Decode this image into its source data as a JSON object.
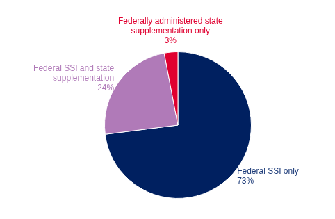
{
  "chart_data": {
    "type": "pie",
    "values": [
      73,
      24,
      3
    ],
    "colors": [
      "#002060",
      "#b07ab8",
      "#e00030"
    ],
    "annotations": [
      {
        "text": "Federal SSI only\n73%",
        "color": "#1f3d7a"
      },
      {
        "text": "Federal SSI and state\nsupplementation\n24%",
        "color": "#b07ab8"
      },
      {
        "text": "Federally administered state\nsupplementation only\n3%",
        "color": "#e00030"
      }
    ]
  }
}
